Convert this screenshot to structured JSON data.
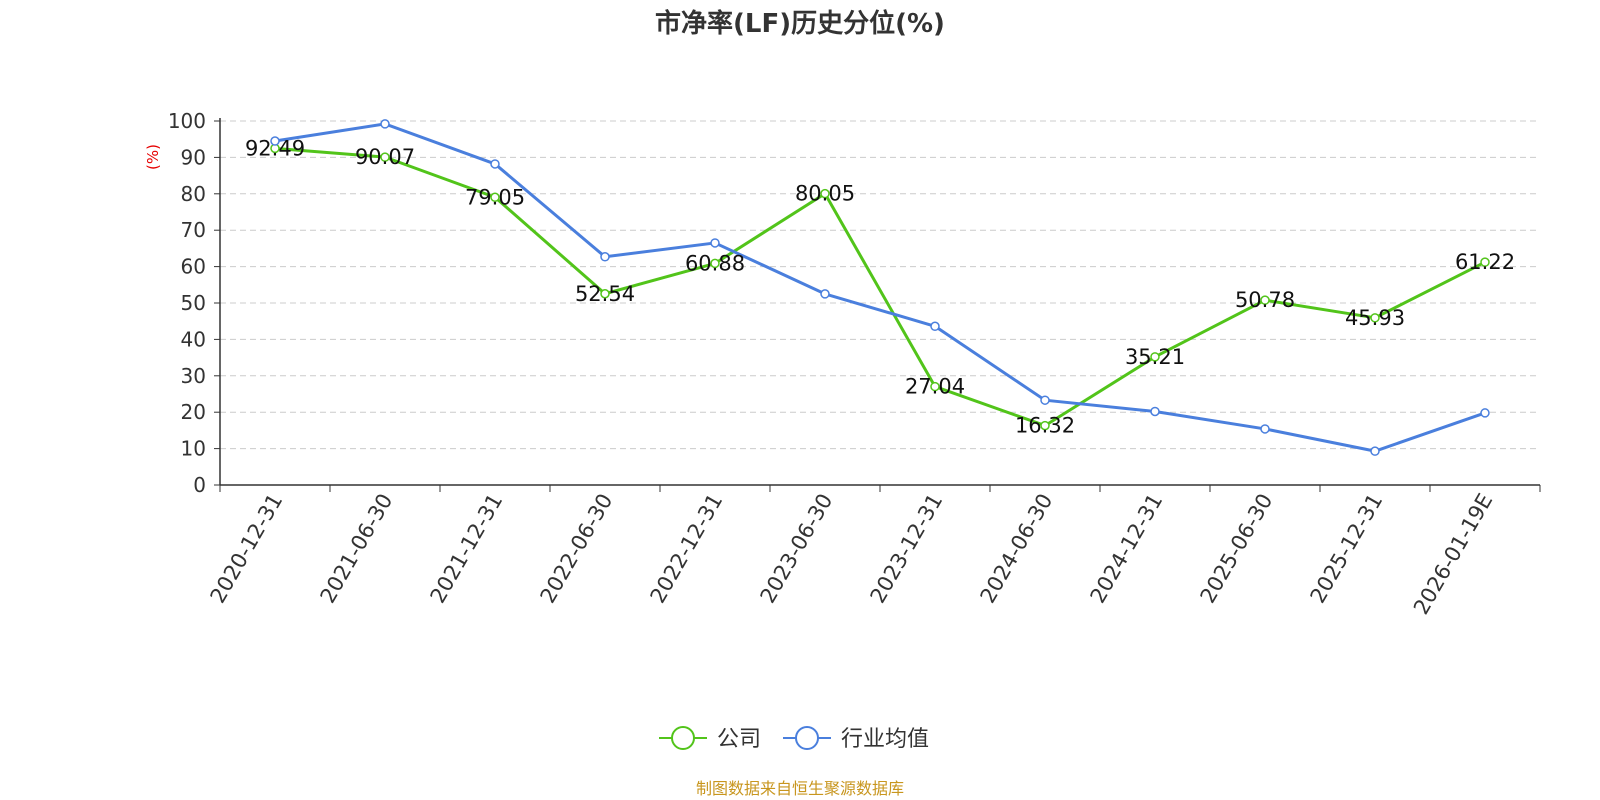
{
  "chart_data": {
    "type": "line",
    "title": "市净率(LF)历史分位(%)",
    "ylabel": "(%)",
    "xlabel": "",
    "ylim": [
      0,
      100
    ],
    "yticks": [
      0,
      10,
      20,
      30,
      40,
      50,
      60,
      70,
      80,
      90,
      100
    ],
    "grid": true,
    "legend_position": "bottom-center",
    "categories": [
      "2020-12-31",
      "2021-06-30",
      "2021-12-31",
      "2022-06-30",
      "2022-12-31",
      "2023-06-30",
      "2023-12-31",
      "2024-06-30",
      "2024-12-31",
      "2025-06-30",
      "2025-12-31",
      "2026-01-19E"
    ],
    "series": [
      {
        "name": "公司",
        "color": "#52c41a",
        "show_labels": true,
        "values": [
          92.49,
          90.07,
          79.05,
          52.54,
          60.88,
          80.05,
          27.04,
          16.32,
          35.21,
          50.78,
          45.93,
          61.22
        ]
      },
      {
        "name": "行业均值",
        "color": "#4a7fdd",
        "show_labels": false,
        "values": [
          94.5,
          99.2,
          88.2,
          62.7,
          66.5,
          52.5,
          43.6,
          23.3,
          20.2,
          15.4,
          9.3,
          19.8
        ]
      }
    ],
    "source": "制图数据来自恒生聚源数据库"
  }
}
